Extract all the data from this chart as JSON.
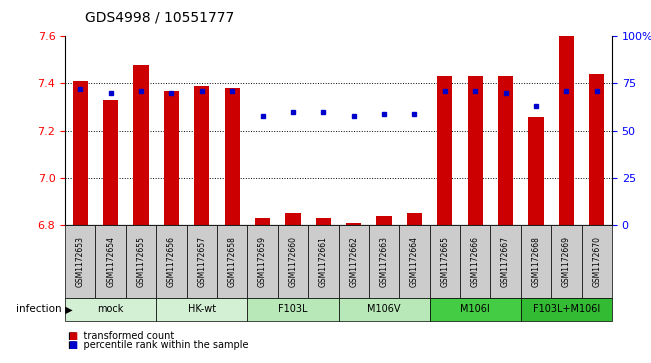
{
  "title": "GDS4998 / 10551777",
  "samples": [
    "GSM1172653",
    "GSM1172654",
    "GSM1172655",
    "GSM1172656",
    "GSM1172657",
    "GSM1172658",
    "GSM1172659",
    "GSM1172660",
    "GSM1172661",
    "GSM1172662",
    "GSM1172663",
    "GSM1172664",
    "GSM1172665",
    "GSM1172666",
    "GSM1172667",
    "GSM1172668",
    "GSM1172669",
    "GSM1172670"
  ],
  "transformed_counts": [
    7.41,
    7.33,
    7.48,
    7.37,
    7.39,
    7.38,
    6.83,
    6.85,
    6.83,
    6.81,
    6.84,
    6.85,
    7.43,
    7.43,
    7.43,
    7.26,
    7.6,
    7.44
  ],
  "percentile_ranks": [
    72,
    70,
    71,
    70,
    71,
    71,
    58,
    60,
    60,
    58,
    59,
    59,
    71,
    71,
    70,
    63,
    71,
    71
  ],
  "group_data": [
    {
      "label": "mock",
      "indices": [
        0,
        1,
        2
      ],
      "color": "#d4f0d4"
    },
    {
      "label": "HK-wt",
      "indices": [
        3,
        4,
        5
      ],
      "color": "#d4f0d4"
    },
    {
      "label": "F103L",
      "indices": [
        6,
        7,
        8
      ],
      "color": "#b8e8b8"
    },
    {
      "label": "M106V",
      "indices": [
        9,
        10,
        11
      ],
      "color": "#b8e8b8"
    },
    {
      "label": "M106I",
      "indices": [
        12,
        13,
        14
      ],
      "color": "#44cc44"
    },
    {
      "label": "F103L+M106I",
      "indices": [
        15,
        16,
        17
      ],
      "color": "#33bb33"
    }
  ],
  "ylim_left": [
    6.8,
    7.6
  ],
  "ylim_right": [
    0,
    100
  ],
  "yticks_left": [
    6.8,
    7.0,
    7.2,
    7.4,
    7.6
  ],
  "yticks_right": [
    0,
    25,
    50,
    75,
    100
  ],
  "bar_color": "#cc0000",
  "dot_color": "#0000cc",
  "bar_width": 0.5,
  "baseline": 6.8,
  "sample_box_color": "#cccccc",
  "background_color": "#ffffff"
}
